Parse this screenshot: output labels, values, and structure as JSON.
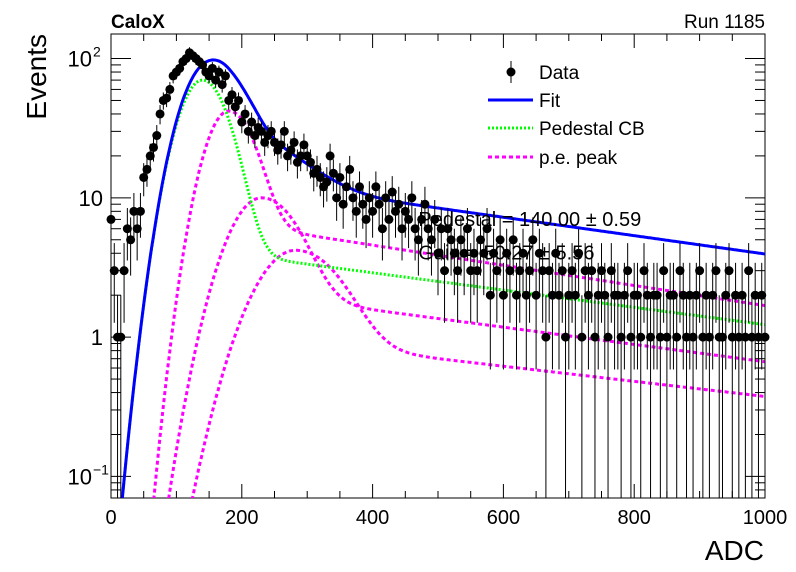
{
  "header": {
    "left_label": "CaloX",
    "right_label": "Run 1185"
  },
  "chart_data": {
    "type": "scatter",
    "xlabel": "ADC",
    "ylabel": "Events",
    "xlim": [
      0,
      1000
    ],
    "ylim": [
      0.07,
      150
    ],
    "yscale": "log",
    "grid": false,
    "legend_position": "top-right",
    "x_ticks": [
      {
        "value": 0,
        "label": "0"
      },
      {
        "value": 200,
        "label": "200"
      },
      {
        "value": 400,
        "label": "400"
      },
      {
        "value": 600,
        "label": "600"
      },
      {
        "value": 800,
        "label": "800"
      },
      {
        "value": 1000,
        "label": "1000"
      }
    ],
    "y_ticks": [
      {
        "value": 0.1,
        "base": "10",
        "exp": "−1"
      },
      {
        "value": 1,
        "base": "1",
        "exp": ""
      },
      {
        "value": 10,
        "base": "10",
        "exp": ""
      },
      {
        "value": 100,
        "base": "10",
        "exp": "2"
      }
    ],
    "legend": [
      {
        "label": "Data",
        "style": "marker",
        "color": "#000000"
      },
      {
        "label": "Fit",
        "style": "solid",
        "color": "#0000ff"
      },
      {
        "label": "Pedestal CB",
        "style": "dotted",
        "color": "#00ff00"
      },
      {
        "label": "p.e. peak",
        "style": "dashed",
        "color": "#ff00ff"
      }
    ],
    "annotations": [
      {
        "text": "Pedestal = 140.00 ± 0.59",
        "x": 470,
        "y": 6.3
      },
      {
        "text": "Gain = 50.27 ± 5.56",
        "x": 470,
        "y": 3.6
      }
    ],
    "data_series": {
      "name": "Data",
      "x": [
        0,
        5,
        10,
        15,
        20,
        25,
        30,
        35,
        40,
        45,
        50,
        55,
        60,
        65,
        70,
        75,
        80,
        85,
        90,
        95,
        100,
        105,
        110,
        115,
        120,
        125,
        130,
        135,
        140,
        145,
        150,
        155,
        160,
        165,
        170,
        175,
        180,
        185,
        190,
        195,
        200,
        205,
        210,
        215,
        220,
        225,
        230,
        235,
        240,
        245,
        250,
        255,
        260,
        265,
        270,
        275,
        280,
        285,
        290,
        295,
        300,
        305,
        310,
        315,
        320,
        325,
        330,
        335,
        340,
        345,
        350,
        355,
        360,
        365,
        370,
        375,
        380,
        385,
        390,
        395,
        400,
        405,
        410,
        415,
        420,
        425,
        430,
        435,
        440,
        445,
        450,
        455,
        460,
        465,
        470,
        475,
        480,
        485,
        490,
        495,
        500,
        505,
        510,
        515,
        520,
        525,
        530,
        535,
        540,
        545,
        550,
        555,
        560,
        565,
        570,
        575,
        580,
        585,
        590,
        595,
        600,
        605,
        610,
        615,
        620,
        625,
        630,
        635,
        640,
        645,
        650,
        655,
        660,
        665,
        670,
        675,
        680,
        685,
        690,
        695,
        700,
        705,
        710,
        715,
        720,
        725,
        730,
        735,
        740,
        745,
        750,
        755,
        760,
        765,
        770,
        775,
        780,
        785,
        790,
        795,
        800,
        805,
        810,
        815,
        820,
        825,
        830,
        835,
        840,
        845,
        850,
        855,
        860,
        865,
        870,
        875,
        880,
        885,
        890,
        895,
        900,
        905,
        910,
        915,
        920,
        925,
        930,
        935,
        940,
        945,
        950,
        955,
        960,
        965,
        970,
        975,
        980,
        985,
        990,
        995,
        1000
      ],
      "y": [
        7,
        3,
        1,
        1,
        3,
        6,
        5,
        8,
        6,
        8,
        14,
        16,
        20,
        23,
        28,
        40,
        50,
        52,
        60,
        75,
        80,
        85,
        95,
        100,
        110,
        105,
        100,
        95,
        90,
        80,
        75,
        85,
        70,
        80,
        65,
        75,
        50,
        55,
        45,
        50,
        35,
        40,
        30,
        35,
        28,
        32,
        30,
        25,
        28,
        30,
        25,
        22,
        24,
        30,
        20,
        22,
        25,
        18,
        20,
        24,
        20,
        18,
        15,
        16,
        14,
        12,
        13,
        20,
        15,
        10,
        14,
        9,
        12,
        16,
        10,
        8,
        12,
        9,
        7,
        10,
        8,
        12,
        9,
        6,
        10,
        7,
        11,
        8,
        9,
        6,
        8,
        7,
        10,
        6,
        5,
        7,
        9,
        6,
        5,
        7,
        4,
        6,
        3,
        6,
        5,
        4,
        3,
        5,
        4,
        6,
        3,
        4,
        3,
        5,
        4,
        6,
        2,
        4,
        3,
        5,
        2,
        4,
        3,
        5,
        2,
        3,
        4,
        2,
        3,
        5,
        2,
        4,
        3,
        1,
        3,
        2,
        4,
        2,
        3,
        1,
        2,
        3,
        2,
        4,
        1,
        3,
        2,
        3,
        1,
        2,
        3,
        2,
        1,
        3,
        2,
        2,
        1,
        2,
        3,
        1,
        2,
        2,
        1,
        3,
        2,
        1,
        2,
        2,
        1,
        3,
        1,
        2,
        2,
        1,
        3,
        2,
        1,
        2,
        1,
        2,
        3,
        1,
        2,
        1,
        2,
        3,
        1,
        1,
        2,
        3,
        1,
        2,
        1,
        2,
        1,
        3,
        1,
        2,
        1,
        2,
        1
      ]
    },
    "fit_model": {
      "pedestal_amplitude": 70,
      "pedestal_mean": 140,
      "pedestal_sigma": 33,
      "pedestal_tail_amplitude": 4.2,
      "pedestal_tail_decay": 700,
      "pe_peaks": [
        {
          "amplitude": 42,
          "mean": 180,
          "sigma": 32,
          "tail_amplitude": 6.6,
          "tail_decay": 600
        },
        {
          "amplitude": 10,
          "mean": 230,
          "sigma": 45,
          "tail_amplitude": 2.0,
          "tail_decay": 700
        },
        {
          "amplitude": 4.2,
          "mean": 282,
          "sigma": 55,
          "tail_amplitude": 0.92,
          "tail_decay": 800
        }
      ]
    }
  }
}
